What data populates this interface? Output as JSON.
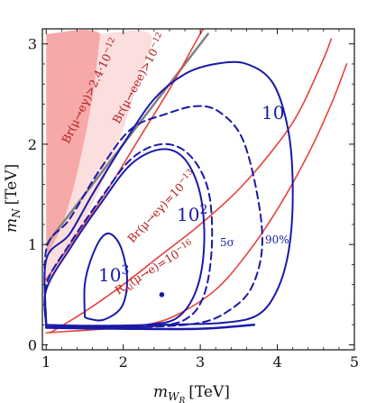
{
  "chart_data": {
    "type": "line",
    "xlabel_main": "m",
    "xlabel_sub": "W",
    "xlabel_subsub": "R",
    "xlabel_unit": "[TeV]",
    "ylabel_main": "m",
    "ylabel_sub": "N",
    "ylabel_unit": "[TeV]",
    "xlim": [
      0.95,
      5.0
    ],
    "ylim": [
      -0.05,
      3.15
    ],
    "x_ticks": [
      "1",
      "2",
      "3",
      "4",
      "5"
    ],
    "x_tick_values": [
      1,
      2,
      3,
      4,
      5
    ],
    "y_ticks": [
      "0",
      "1",
      "2",
      "3"
    ],
    "y_tick_values": [
      0,
      1,
      2,
      3
    ],
    "colors": {
      "excluded_fill": "#f7a8a8",
      "excluded_light_fill": "#fbdede",
      "red_curve": "#e8423b",
      "gray_line": "#808080",
      "blue_contour": "#1a1aa8"
    },
    "regions": [
      {
        "name": "Br(μ→eγ)>2.4·10^-12",
        "fill": "#f7a8a8",
        "points": [
          [
            1.0,
            3.1
          ],
          [
            1.7,
            3.1
          ],
          [
            1.62,
            2.55
          ],
          [
            1.5,
            2.05
          ],
          [
            1.35,
            1.55
          ],
          [
            1.2,
            1.18
          ],
          [
            1.05,
            0.95
          ],
          [
            1.0,
            0.9
          ]
        ]
      },
      {
        "name": "Br(μ→eee)>10^-12",
        "fill": "#fbdede",
        "points": [
          [
            1.7,
            3.1
          ],
          [
            2.35,
            3.1
          ],
          [
            2.2,
            2.65
          ],
          [
            2.0,
            2.15
          ],
          [
            1.75,
            1.65
          ],
          [
            1.5,
            1.25
          ],
          [
            1.25,
            0.9
          ],
          [
            1.0,
            0.55
          ],
          [
            1.0,
            0.9
          ],
          [
            1.05,
            0.95
          ],
          [
            1.2,
            1.18
          ],
          [
            1.35,
            1.55
          ],
          [
            1.5,
            2.05
          ],
          [
            1.62,
            2.55
          ]
        ]
      }
    ],
    "lines": [
      {
        "name": "gray",
        "color": "#808080",
        "width": 2.5,
        "dash": "",
        "points": [
          [
            1.0,
            1.0
          ],
          [
            3.1,
            3.1
          ]
        ]
      },
      {
        "name": "Br(μ→eγ)=10^-13",
        "color": "#e8423b",
        "width": 1.6,
        "dash": "",
        "points": [
          [
            1.0,
            0.65
          ],
          [
            1.4,
            1.1
          ],
          [
            1.8,
            1.55
          ],
          [
            2.2,
            2.05
          ],
          [
            2.6,
            2.55
          ],
          [
            3.0,
            3.1
          ],
          [
            3.1,
            3.2
          ]
        ]
      },
      {
        "name": "R_Al(μ→e)=10^-16 upper",
        "color": "#e8423b",
        "width": 1.6,
        "dash": "",
        "points": [
          [
            1.05,
            0.12
          ],
          [
            1.5,
            0.33
          ],
          [
            2.0,
            0.6
          ],
          [
            2.5,
            0.9
          ],
          [
            3.0,
            1.2
          ],
          [
            3.5,
            1.55
          ],
          [
            4.0,
            2.0
          ],
          [
            4.3,
            2.35
          ],
          [
            4.6,
            2.85
          ],
          [
            4.7,
            3.05
          ]
        ]
      },
      {
        "name": "red upper branch",
        "color": "#e8423b",
        "width": 1.6,
        "dash": "",
        "points": [
          [
            1.0,
            0.12
          ],
          [
            1.8,
            0.16
          ],
          [
            2.3,
            0.2
          ],
          [
            2.7,
            0.3
          ],
          [
            3.2,
            0.55
          ],
          [
            3.6,
            0.9
          ],
          [
            4.0,
            1.35
          ],
          [
            4.4,
            1.9
          ],
          [
            4.7,
            2.4
          ],
          [
            4.9,
            2.8
          ]
        ]
      },
      {
        "name": "10 (5σ)",
        "color": "#1a1aa8",
        "width": 2,
        "dash": "",
        "points": [
          [
            1.0,
            0.2
          ],
          [
            1.0,
            0.85
          ],
          [
            1.3,
            1.1
          ],
          [
            1.6,
            1.5
          ],
          [
            2.0,
            2.0
          ],
          [
            2.4,
            2.45
          ],
          [
            2.8,
            2.7
          ],
          [
            3.2,
            2.8
          ],
          [
            3.6,
            2.8
          ],
          [
            3.95,
            2.6
          ],
          [
            4.15,
            2.1
          ],
          [
            4.2,
            1.5
          ],
          [
            4.15,
            0.95
          ],
          [
            4.0,
            0.55
          ],
          [
            3.75,
            0.3
          ],
          [
            3.3,
            0.22
          ],
          [
            2.5,
            0.2
          ],
          [
            1.6,
            0.19
          ],
          [
            1.0,
            0.2
          ]
        ]
      },
      {
        "name": "10 (90%)",
        "color": "#1a1aa8",
        "width": 2,
        "dash": "8,5",
        "points": [
          [
            1.0,
            0.18
          ],
          [
            1.0,
            0.95
          ],
          [
            1.3,
            1.25
          ],
          [
            1.7,
            1.75
          ],
          [
            2.1,
            2.15
          ],
          [
            2.55,
            2.3
          ],
          [
            2.95,
            2.38
          ],
          [
            3.25,
            2.32
          ],
          [
            3.55,
            2.05
          ],
          [
            3.75,
            1.45
          ],
          [
            3.8,
            0.95
          ],
          [
            3.65,
            0.55
          ],
          [
            3.35,
            0.33
          ],
          [
            3.0,
            0.22
          ],
          [
            2.4,
            0.18
          ],
          [
            1.6,
            0.17
          ],
          [
            1.0,
            0.18
          ]
        ]
      },
      {
        "name": "10^2 (5σ)",
        "color": "#1a1aa8",
        "width": 2,
        "dash": "",
        "points": [
          [
            1.0,
            0.18
          ],
          [
            1.0,
            0.55
          ],
          [
            1.3,
            0.95
          ],
          [
            1.7,
            1.4
          ],
          [
            2.1,
            1.8
          ],
          [
            2.5,
            1.95
          ],
          [
            2.8,
            1.85
          ],
          [
            3.0,
            1.5
          ],
          [
            3.05,
            1.0
          ],
          [
            2.95,
            0.55
          ],
          [
            2.7,
            0.27
          ],
          [
            2.3,
            0.2
          ],
          [
            1.7,
            0.18
          ],
          [
            1.0,
            0.18
          ]
        ]
      },
      {
        "name": "10^2 (90%)",
        "color": "#1a1aa8",
        "width": 2,
        "dash": "8,5",
        "points": [
          [
            1.0,
            0.17
          ],
          [
            1.0,
            0.6
          ],
          [
            1.3,
            1.0
          ],
          [
            1.7,
            1.45
          ],
          [
            2.1,
            1.85
          ],
          [
            2.5,
            2.0
          ],
          [
            2.85,
            1.9
          ],
          [
            3.1,
            1.55
          ],
          [
            3.15,
            1.0
          ],
          [
            3.05,
            0.5
          ],
          [
            2.8,
            0.25
          ],
          [
            2.3,
            0.18
          ],
          [
            1.7,
            0.17
          ],
          [
            1.0,
            0.17
          ]
        ]
      },
      {
        "name": "10^3",
        "color": "#1a1aa8",
        "width": 2,
        "dash": "",
        "points": [
          [
            1.5,
            0.28
          ],
          [
            1.5,
            0.6
          ],
          [
            1.58,
            0.85
          ],
          [
            1.72,
            1.07
          ],
          [
            1.85,
            1.1
          ],
          [
            1.98,
            0.95
          ],
          [
            2.05,
            0.65
          ],
          [
            1.98,
            0.38
          ],
          [
            1.75,
            0.25
          ],
          [
            1.55,
            0.26
          ],
          [
            1.5,
            0.28
          ]
        ]
      },
      {
        "name": "bottom band upper",
        "color": "#1a1aa8",
        "width": 2.5,
        "dash": "",
        "points": [
          [
            1.0,
            0.17
          ],
          [
            2.0,
            0.16
          ],
          [
            3.0,
            0.16
          ],
          [
            3.7,
            0.2
          ]
        ]
      }
    ],
    "points": [
      {
        "name": "benchmark",
        "x": 2.5,
        "y": 0.5,
        "color": "#1a1aa8"
      }
    ],
    "annotations": {
      "br_eg_excl": "Br(μ→eγ)>2.4·10",
      "br_eg_excl_exp": "−12",
      "br_eee_excl": "Br(μ→eee)>10",
      "br_eee_excl_exp": "−12",
      "br_eg_line": "Br(μ→eγ)=10",
      "br_eg_line_exp": "−13",
      "ral_line": "R",
      "ral_line_sub": "Al",
      "ral_line_rest": "(μ→e)=10",
      "ral_line_exp": "−16",
      "label_10": "10",
      "label_100_base": "10",
      "label_100_exp": "2",
      "label_1000_base": "10",
      "label_1000_exp": "3",
      "label_5sigma": "5σ",
      "label_90": "90%"
    }
  }
}
